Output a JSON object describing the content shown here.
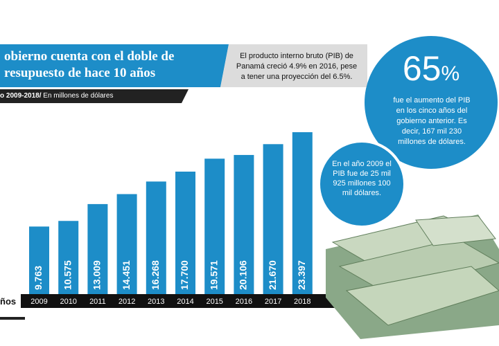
{
  "chart_data": {
    "type": "bar",
    "title": [
      "obierno cuenta con el doble de",
      "resupuesto de hace 10 años"
    ],
    "subtitle": "o 2009-2018/",
    "subtitle_note": "En millones de dólares",
    "note": "El producto interno bruto (PIB) de Panamá creció 4.9% en 2016, pese a tener una proyección del 6.5%.",
    "big_stat": "65",
    "big_stat_unit": "%",
    "big_stat_text": "fue el aumento del PIB en los cinco años del gobierno anterior. Es decir, 167 mil 230 millones de dólares.",
    "small_stat_text": "En el año 2009 el PIB fue de 25 mil 925 millones 100 mil dólares.",
    "x_label": "ños",
    "categories": [
      "2009",
      "2010",
      "2011",
      "2012",
      "2013",
      "2014",
      "2015",
      "2016",
      "2017",
      "2018"
    ],
    "values": [
      9763,
      10575,
      13009,
      14451,
      16268,
      17700,
      19571,
      20106,
      21670,
      23397
    ],
    "value_labels": [
      "9.763",
      "10.575",
      "13.009",
      "14.451",
      "16.268",
      "17.700",
      "19.571",
      "20.106",
      "21.670",
      "23.397"
    ],
    "color": "#1d8dc8"
  }
}
